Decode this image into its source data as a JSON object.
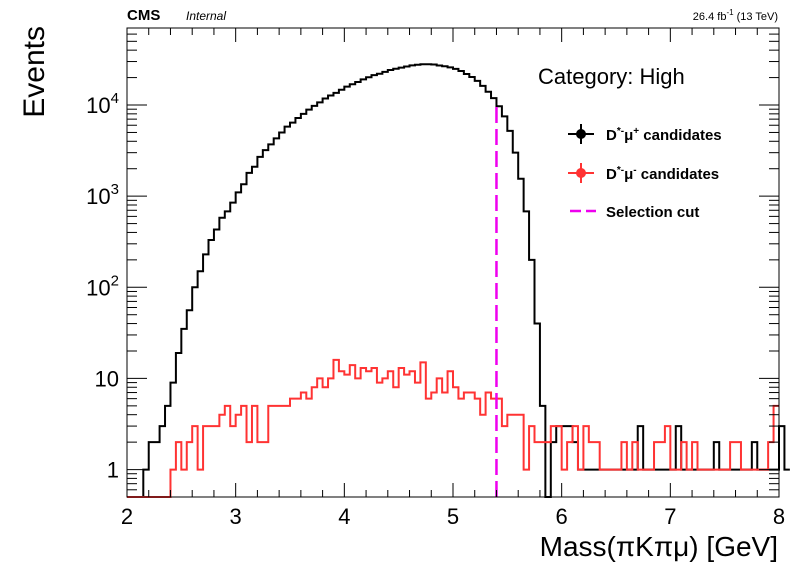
{
  "chart_data": {
    "type": "histogram",
    "title": "",
    "experiment_label": "CMS",
    "experiment_sublabel": "Internal",
    "lumi_label": "26.4 fb",
    "lumi_exponent": "-1",
    "energy_label": " (13 TeV)",
    "category_label": "Category: High",
    "xlabel": "Mass(πKπμ) [GeV]",
    "ylabel": "Events",
    "xlim": [
      2,
      8
    ],
    "ylim": [
      0.5,
      70000
    ],
    "y_scale": "log",
    "grid": false,
    "legend_position": "top-right",
    "x_ticks": [
      {
        "value": 2,
        "label": "2"
      },
      {
        "value": 3,
        "label": "3"
      },
      {
        "value": 4,
        "label": "4"
      },
      {
        "value": 5,
        "label": "5"
      },
      {
        "value": 6,
        "label": "6"
      },
      {
        "value": 7,
        "label": "7"
      },
      {
        "value": 8,
        "label": "8"
      }
    ],
    "y_ticks": [
      {
        "value": 1,
        "base": "1",
        "exp": ""
      },
      {
        "value": 10,
        "base": "10",
        "exp": ""
      },
      {
        "value": 100,
        "base": "10",
        "exp": "2"
      },
      {
        "value": 1000,
        "base": "10",
        "exp": "3"
      },
      {
        "value": 10000,
        "base": "10",
        "exp": "4"
      }
    ],
    "bin_edges": {
      "start": 2.0,
      "width": 0.05,
      "count": 120
    },
    "series": [
      {
        "name": "D*⁻μ⁺ candidates",
        "legend_main": "D",
        "legend_sup": "*-",
        "legend_mu": "μ",
        "legend_sup2": "+",
        "legend_tail": " candidates",
        "color": "#000000",
        "values": [
          0,
          0,
          0,
          1,
          2,
          2,
          3,
          5,
          9,
          19,
          35,
          56,
          100,
          150,
          230,
          330,
          430,
          580,
          680,
          850,
          1100,
          1350,
          1800,
          2100,
          2700,
          3200,
          3700,
          4300,
          5000,
          5800,
          6400,
          7200,
          8000,
          8900,
          9800,
          10700,
          11800,
          12700,
          13600,
          14700,
          15900,
          16900,
          17900,
          19100,
          20200,
          21300,
          22000,
          23100,
          24200,
          25000,
          25700,
          26500,
          27200,
          27700,
          28000,
          28000,
          27800,
          27100,
          26600,
          25900,
          24900,
          23600,
          21900,
          20300,
          18400,
          16200,
          14000,
          11900,
          9700,
          7500,
          5200,
          3000,
          1550,
          680,
          200,
          40,
          5,
          0,
          2,
          3,
          3,
          3,
          2,
          1,
          1,
          1,
          1,
          1,
          1,
          1,
          1,
          1,
          1,
          1,
          3,
          1,
          1,
          1,
          1,
          1,
          1,
          3,
          1,
          1,
          1,
          1,
          1,
          1,
          2,
          1,
          1,
          1,
          1,
          1,
          1,
          2,
          1,
          1,
          1,
          1,
          3,
          1
        ]
      },
      {
        "name": "D*⁻μ⁻ candidates",
        "legend_main": "D",
        "legend_sup": "*-",
        "legend_mu": "μ",
        "legend_sup2": "-",
        "legend_tail": " candidates",
        "color": "#ff3333",
        "values": [
          0,
          0,
          0,
          0,
          0,
          0,
          0,
          0,
          1,
          2,
          1,
          2,
          3,
          1,
          3,
          3,
          3,
          4,
          5,
          3,
          4,
          5,
          2,
          5,
          2,
          2,
          5,
          5,
          5,
          5,
          6,
          6,
          7,
          6,
          8,
          10,
          8,
          10,
          16,
          12,
          11,
          14,
          10,
          13,
          12,
          13,
          9,
          10,
          12,
          8,
          13,
          11,
          12,
          9,
          15,
          6,
          7,
          10,
          7,
          12,
          8,
          6,
          7,
          7,
          6,
          4,
          7,
          6,
          6,
          3,
          4,
          4,
          4,
          1,
          3,
          2,
          2,
          2,
          3,
          3,
          1,
          2,
          3,
          1,
          3,
          2,
          2,
          1,
          1,
          1,
          1,
          2,
          1,
          2,
          1,
          1,
          1,
          2,
          2,
          3,
          1,
          1,
          2,
          1,
          2,
          1,
          1,
          1,
          1,
          1,
          1,
          2,
          2,
          1,
          1,
          1,
          1,
          1,
          2,
          5
        ]
      }
    ],
    "selection_cut": {
      "name": "Selection cut",
      "x": 5.4,
      "color": "#ee00ee"
    }
  }
}
